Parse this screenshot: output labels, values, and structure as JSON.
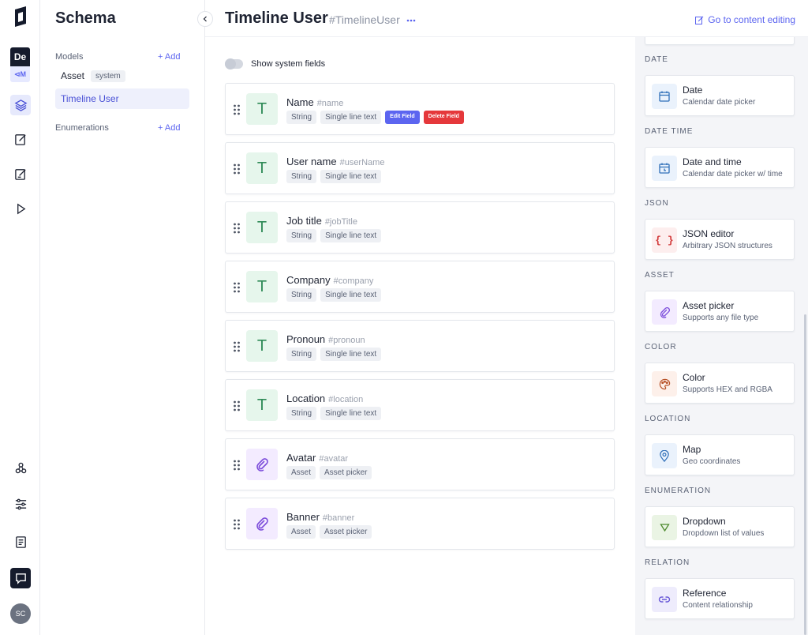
{
  "rail": {
    "project_initials": "De",
    "env_label": "⊲M",
    "user_initials": "SC"
  },
  "schema": {
    "title": "Schema",
    "models_label": "Models",
    "add_label": "+ Add",
    "models": [
      {
        "name": "Asset",
        "tag": "system"
      },
      {
        "name": "Timeline User",
        "tag": ""
      }
    ],
    "enumerations_label": "Enumerations"
  },
  "header": {
    "title": "Timeline User",
    "api_id": "#TimelineUser",
    "go_content_label": "Go to content editing"
  },
  "toggle": {
    "label": "Show system fields",
    "on": false
  },
  "fields": [
    {
      "name": "Name",
      "api": "#name",
      "kind": "text",
      "tags": [
        "String",
        "Single line text"
      ],
      "edit_label": "Edit Field",
      "delete_label": "Delete Field"
    },
    {
      "name": "User name",
      "api": "#userName",
      "kind": "text",
      "tags": [
        "String",
        "Single line text"
      ]
    },
    {
      "name": "Job title",
      "api": "#jobTitle",
      "kind": "text",
      "tags": [
        "String",
        "Single line text"
      ]
    },
    {
      "name": "Company",
      "api": "#company",
      "kind": "text",
      "tags": [
        "String",
        "Single line text"
      ]
    },
    {
      "name": "Pronoun",
      "api": "#pronoun",
      "kind": "text",
      "tags": [
        "String",
        "Single line text"
      ]
    },
    {
      "name": "Location",
      "api": "#location",
      "kind": "text",
      "tags": [
        "String",
        "Single line text"
      ]
    },
    {
      "name": "Avatar",
      "api": "#avatar",
      "kind": "asset",
      "tags": [
        "Asset",
        "Asset picker"
      ]
    },
    {
      "name": "Banner",
      "api": "#banner",
      "kind": "asset",
      "tags": [
        "Asset",
        "Asset picker"
      ]
    }
  ],
  "field_icon_letter": "T",
  "palette": [
    {
      "category": "DATE",
      "name": "Date",
      "desc": "Calendar date picker",
      "icon": "calendar-icon"
    },
    {
      "category": "DATE TIME",
      "name": "Date and time",
      "desc": "Calendar date picker w/ time",
      "icon": "calendar-time-icon"
    },
    {
      "category": "JSON",
      "name": "JSON editor",
      "desc": "Arbitrary JSON structures",
      "icon": "braces-icon"
    },
    {
      "category": "ASSET",
      "name": "Asset picker",
      "desc": "Supports any file type",
      "icon": "paperclip-icon"
    },
    {
      "category": "COLOR",
      "name": "Color",
      "desc": "Supports HEX and RGBA",
      "icon": "palette-icon"
    },
    {
      "category": "LOCATION",
      "name": "Map",
      "desc": "Geo coordinates",
      "icon": "map-pin-icon"
    },
    {
      "category": "ENUMERATION",
      "name": "Dropdown",
      "desc": "Dropdown list of values",
      "icon": "dropdown-icon"
    },
    {
      "category": "RELATION",
      "name": "Reference",
      "desc": "Content relationship",
      "icon": "link-icon"
    }
  ],
  "colors": {
    "accent": "#5c65f0",
    "danger": "#e5383b",
    "text_icon_bg": "#e6f6ec",
    "asset_icon_bg": "#f3ebff"
  }
}
